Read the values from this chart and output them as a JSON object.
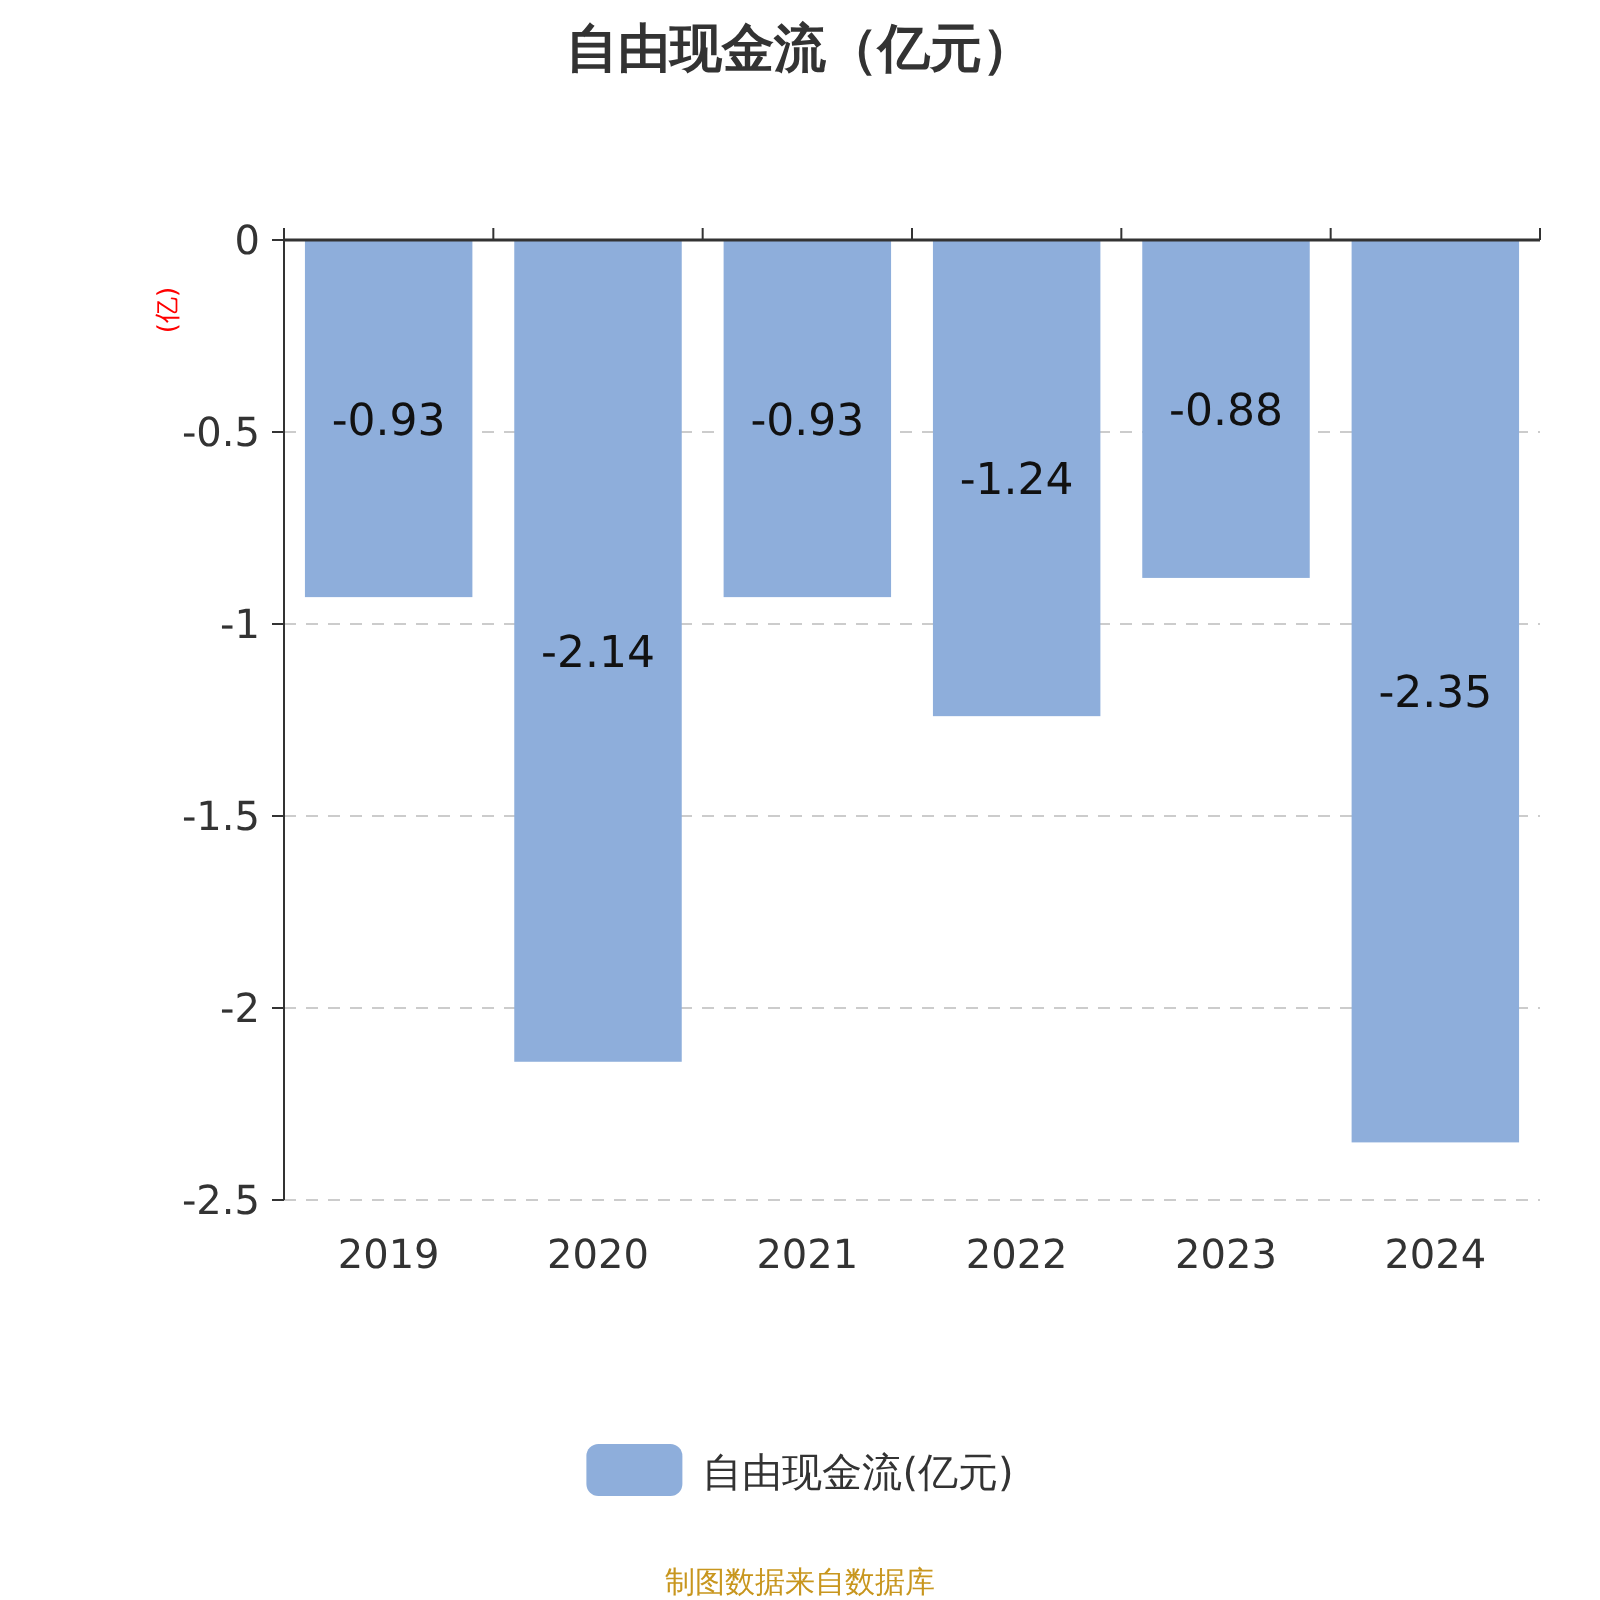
{
  "chart_data": {
    "type": "bar",
    "title": "自由现金流（亿元）",
    "ylabel": "(亿)",
    "categories": [
      "2019",
      "2020",
      "2021",
      "2022",
      "2023",
      "2024"
    ],
    "series": [
      {
        "name": "自由现金流(亿元)",
        "color": "#8eaedb",
        "values": [
          -0.93,
          -2.14,
          -0.93,
          -1.24,
          -0.88,
          -2.35
        ]
      }
    ],
    "ylim": [
      -2.5,
      0
    ],
    "yticks": [
      0,
      -0.5,
      -1,
      -1.5,
      -2,
      -2.5
    ],
    "grid": "y",
    "legend": "bottom",
    "data_labels": true,
    "annotations": [
      "制图数据来自数据库"
    ]
  }
}
